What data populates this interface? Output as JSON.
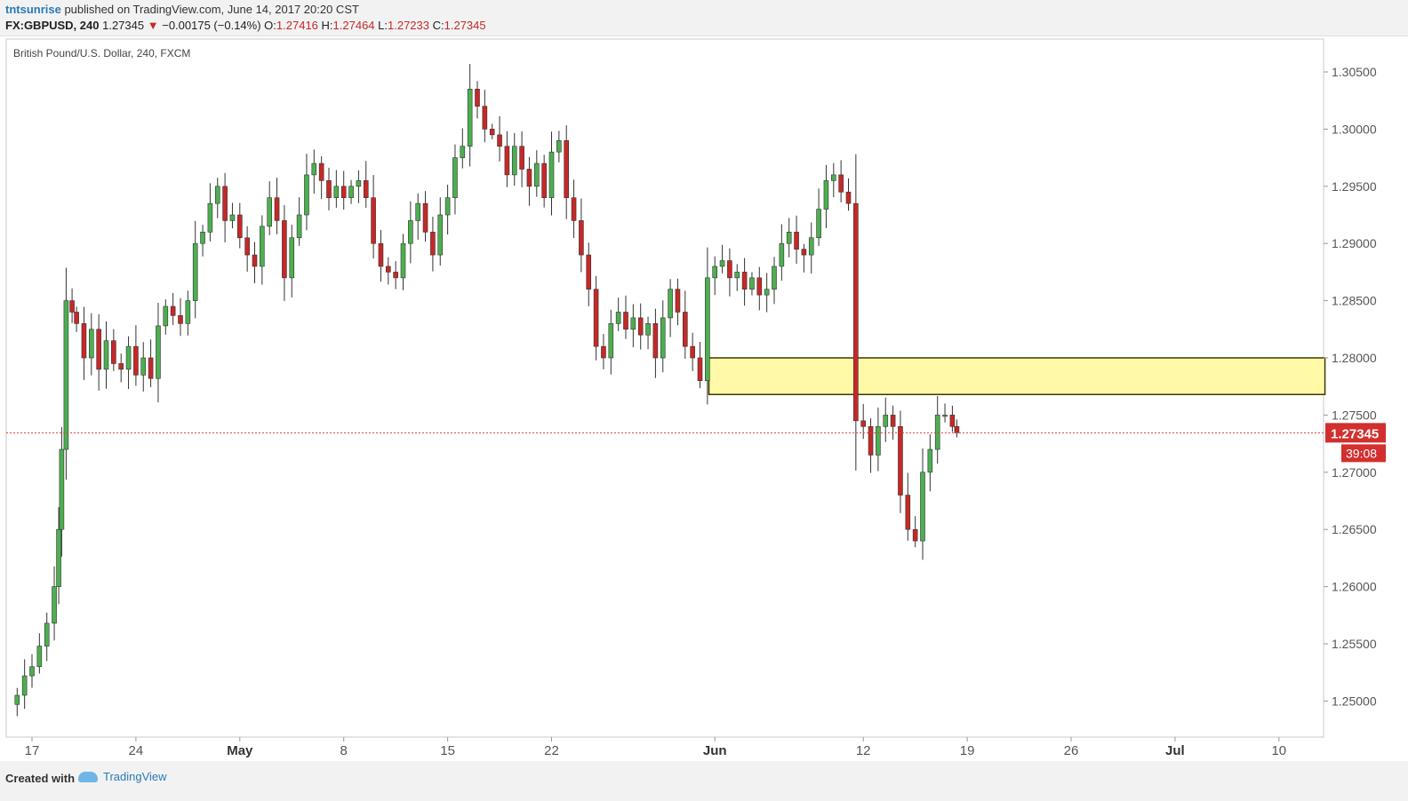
{
  "header": {
    "author": "tntsunrise",
    "published_text": " published on TradingView.com, June 14, 2017 20:20 CST",
    "symbol": "FX:GBPUSD, 240",
    "last": "1.27345",
    "change_arrow": "▼",
    "change": "−0.00175 (−0.14%)",
    "o_label": "O:",
    "o_value": "1.27416",
    "h_label": "H:",
    "h_value": "1.27464",
    "l_label": "L:",
    "l_value": "1.27233",
    "c_label": "C:",
    "c_value": "1.27345"
  },
  "chart_data": {
    "type": "candlestick",
    "title": "British Pound/U.S. Dollar, 240, FXCM",
    "y_ticks": [
      "1.30500",
      "1.30000",
      "1.29500",
      "1.29000",
      "1.28500",
      "1.28000",
      "1.27500",
      "1.27000",
      "1.26500",
      "1.26000",
      "1.25500",
      "1.25000"
    ],
    "ylim": [
      1.2465,
      1.307
    ],
    "x_ticks": [
      {
        "label": "17",
        "day": 0
      },
      {
        "label": "24",
        "day": 7
      },
      {
        "label": "May",
        "day": 14
      },
      {
        "label": "8",
        "day": 21
      },
      {
        "label": "15",
        "day": 28
      },
      {
        "label": "22",
        "day": 35
      },
      {
        "label": "Jun",
        "day": 46
      },
      {
        "label": "12",
        "day": 56
      },
      {
        "label": "19",
        "day": 63
      },
      {
        "label": "26",
        "day": 70
      },
      {
        "label": "Jul",
        "day": 77
      },
      {
        "label": "10",
        "day": 84
      }
    ],
    "x_axis_start": "Apr 17, 2017",
    "current_price": "1.27345",
    "countdown": "39:08",
    "zone": {
      "from_day": 45.6,
      "to_day": 87.1,
      "low": 1.2768,
      "high": 1.28
    },
    "colors": {
      "up": "#4caf50",
      "down": "#c62828",
      "zone_fill": "#fff9a8",
      "zone_stroke": "#3a3a00",
      "price_line": "#e53935"
    },
    "closes": [
      [
        -1.0,
        1.2505
      ],
      [
        -0.5,
        1.2522
      ],
      [
        0,
        1.253
      ],
      [
        0.5,
        1.2548
      ],
      [
        1.0,
        1.2568
      ],
      [
        1.5,
        1.26
      ],
      [
        1.8,
        1.265
      ],
      [
        2.0,
        1.272
      ],
      [
        2.3,
        1.285
      ],
      [
        2.7,
        1.284
      ],
      [
        3.0,
        1.283
      ],
      [
        3.5,
        1.28
      ],
      [
        4.0,
        1.2825
      ],
      [
        4.5,
        1.279
      ],
      [
        5.0,
        1.2815
      ],
      [
        5.5,
        1.2795
      ],
      [
        6.0,
        1.279
      ],
      [
        6.5,
        1.281
      ],
      [
        7.0,
        1.2785
      ],
      [
        7.5,
        1.28
      ],
      [
        8.0,
        1.2782
      ],
      [
        8.5,
        1.2828
      ],
      [
        9.0,
        1.2845
      ],
      [
        9.5,
        1.2837
      ],
      [
        10.0,
        1.283
      ],
      [
        10.5,
        1.285
      ],
      [
        11.0,
        1.29
      ],
      [
        11.5,
        1.291
      ],
      [
        12.0,
        1.2935
      ],
      [
        12.5,
        1.295
      ],
      [
        13.0,
        1.292
      ],
      [
        13.5,
        1.2925
      ],
      [
        14.0,
        1.2905
      ],
      [
        14.5,
        1.289
      ],
      [
        15.0,
        1.288
      ],
      [
        15.5,
        1.2915
      ],
      [
        16.0,
        1.294
      ],
      [
        16.5,
        1.292
      ],
      [
        17.0,
        1.287
      ],
      [
        17.5,
        1.2905
      ],
      [
        18.0,
        1.2925
      ],
      [
        18.5,
        1.296
      ],
      [
        19.0,
        1.297
      ],
      [
        19.5,
        1.2955
      ],
      [
        20.0,
        1.294
      ],
      [
        20.5,
        1.295
      ],
      [
        21.0,
        1.294
      ],
      [
        21.5,
        1.295
      ],
      [
        22.0,
        1.2955
      ],
      [
        22.5,
        1.294
      ],
      [
        23.0,
        1.29
      ],
      [
        23.5,
        1.288
      ],
      [
        24.0,
        1.2875
      ],
      [
        24.5,
        1.287
      ],
      [
        25.0,
        1.29
      ],
      [
        25.5,
        1.292
      ],
      [
        26.0,
        1.2935
      ],
      [
        26.5,
        1.291
      ],
      [
        27.0,
        1.289
      ],
      [
        27.5,
        1.2925
      ],
      [
        28.0,
        1.294
      ],
      [
        28.5,
        1.2975
      ],
      [
        29.0,
        1.2985
      ],
      [
        29.5,
        1.3035
      ],
      [
        30.0,
        1.302
      ],
      [
        30.5,
        1.3
      ],
      [
        31.0,
        1.2995
      ],
      [
        31.5,
        1.2985
      ],
      [
        32.0,
        1.296
      ],
      [
        32.5,
        1.2985
      ],
      [
        33.0,
        1.2965
      ],
      [
        33.5,
        1.295
      ],
      [
        34.0,
        1.297
      ],
      [
        34.5,
        1.294
      ],
      [
        35.0,
        1.298
      ],
      [
        35.5,
        1.299
      ],
      [
        36.0,
        1.294
      ],
      [
        36.5,
        1.292
      ],
      [
        37.0,
        1.289
      ],
      [
        37.5,
        1.286
      ],
      [
        38.0,
        1.281
      ],
      [
        38.5,
        1.28
      ],
      [
        39.0,
        1.283
      ],
      [
        39.5,
        1.284
      ],
      [
        40.0,
        1.2825
      ],
      [
        40.5,
        1.2835
      ],
      [
        41.0,
        1.282
      ],
      [
        41.5,
        1.283
      ],
      [
        42.0,
        1.28
      ],
      [
        42.5,
        1.2835
      ],
      [
        43.0,
        1.286
      ],
      [
        43.5,
        1.284
      ],
      [
        44.0,
        1.281
      ],
      [
        44.5,
        1.28
      ],
      [
        45.0,
        1.278
      ],
      [
        45.5,
        1.287
      ],
      [
        46.0,
        1.288
      ],
      [
        46.5,
        1.2885
      ],
      [
        47.0,
        1.287
      ],
      [
        47.5,
        1.2875
      ],
      [
        48.0,
        1.286
      ],
      [
        48.5,
        1.287
      ],
      [
        49.0,
        1.2855
      ],
      [
        49.5,
        1.286
      ],
      [
        50.0,
        1.288
      ],
      [
        50.5,
        1.29
      ],
      [
        51.0,
        1.291
      ],
      [
        51.5,
        1.2895
      ],
      [
        52.0,
        1.289
      ],
      [
        52.5,
        1.2905
      ],
      [
        53.0,
        1.293
      ],
      [
        53.5,
        1.2955
      ],
      [
        54.0,
        1.296
      ],
      [
        54.5,
        1.2945
      ],
      [
        55.0,
        1.2935
      ],
      [
        55.5,
        1.2745
      ],
      [
        56.0,
        1.274
      ],
      [
        56.5,
        1.2715
      ],
      [
        57.0,
        1.274
      ],
      [
        57.5,
        1.275
      ],
      [
        58.0,
        1.274
      ],
      [
        58.5,
        1.268
      ],
      [
        59.0,
        1.265
      ],
      [
        59.5,
        1.264
      ],
      [
        60.0,
        1.27
      ],
      [
        60.5,
        1.272
      ],
      [
        61.0,
        1.275
      ],
      [
        61.5,
        1.275
      ],
      [
        62.0,
        1.274
      ],
      [
        62.3,
        1.27345
      ]
    ]
  },
  "footer": {
    "created_with": "Created with",
    "brand": "TradingView"
  }
}
